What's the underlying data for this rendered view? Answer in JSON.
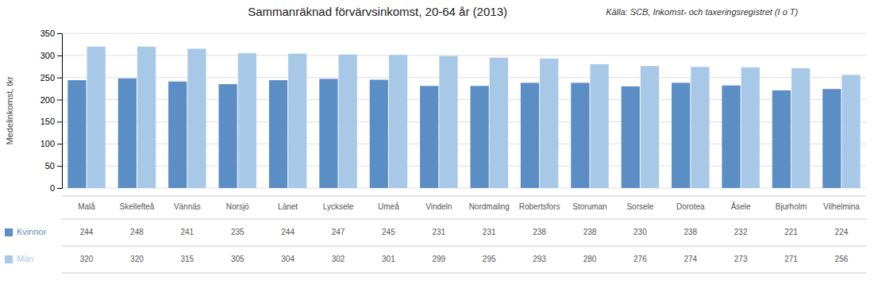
{
  "chart_data": {
    "type": "bar",
    "title": "Sammanräknad förvärvsinkomst, 20-64 år (2013)",
    "annotations": [
      "Källa: SCB, Inkomst- och taxeringsregistret (I o T)"
    ],
    "y_label": "Medelinkomst, tkr",
    "categories": [
      "Malå",
      "Skellefteå",
      "Vännäs",
      "Norsjö",
      "Länet",
      "Lycksele",
      "Umeå",
      "Vindeln",
      "Nordmaling",
      "Robertsfors",
      "Storuman",
      "Sorsele",
      "Dorotea",
      "Åsele",
      "Bjurholm",
      "Vilhelmina"
    ],
    "series": [
      {
        "name": "Kvinnor",
        "color": "#5B8EC5",
        "values": [
          244,
          248,
          241,
          235,
          244,
          247,
          245,
          231,
          231,
          238,
          238,
          230,
          238,
          232,
          221,
          224
        ]
      },
      {
        "name": "Män",
        "color": "#A8C8E8",
        "values": [
          320,
          320,
          315,
          305,
          304,
          302,
          301,
          299,
          295,
          293,
          280,
          276,
          274,
          273,
          271,
          256
        ]
      }
    ],
    "ylim": [
      0,
      350
    ],
    "yticks": [
      0,
      50,
      100,
      150,
      200,
      250,
      300,
      350
    ],
    "grid": true,
    "data_labels": true
  }
}
